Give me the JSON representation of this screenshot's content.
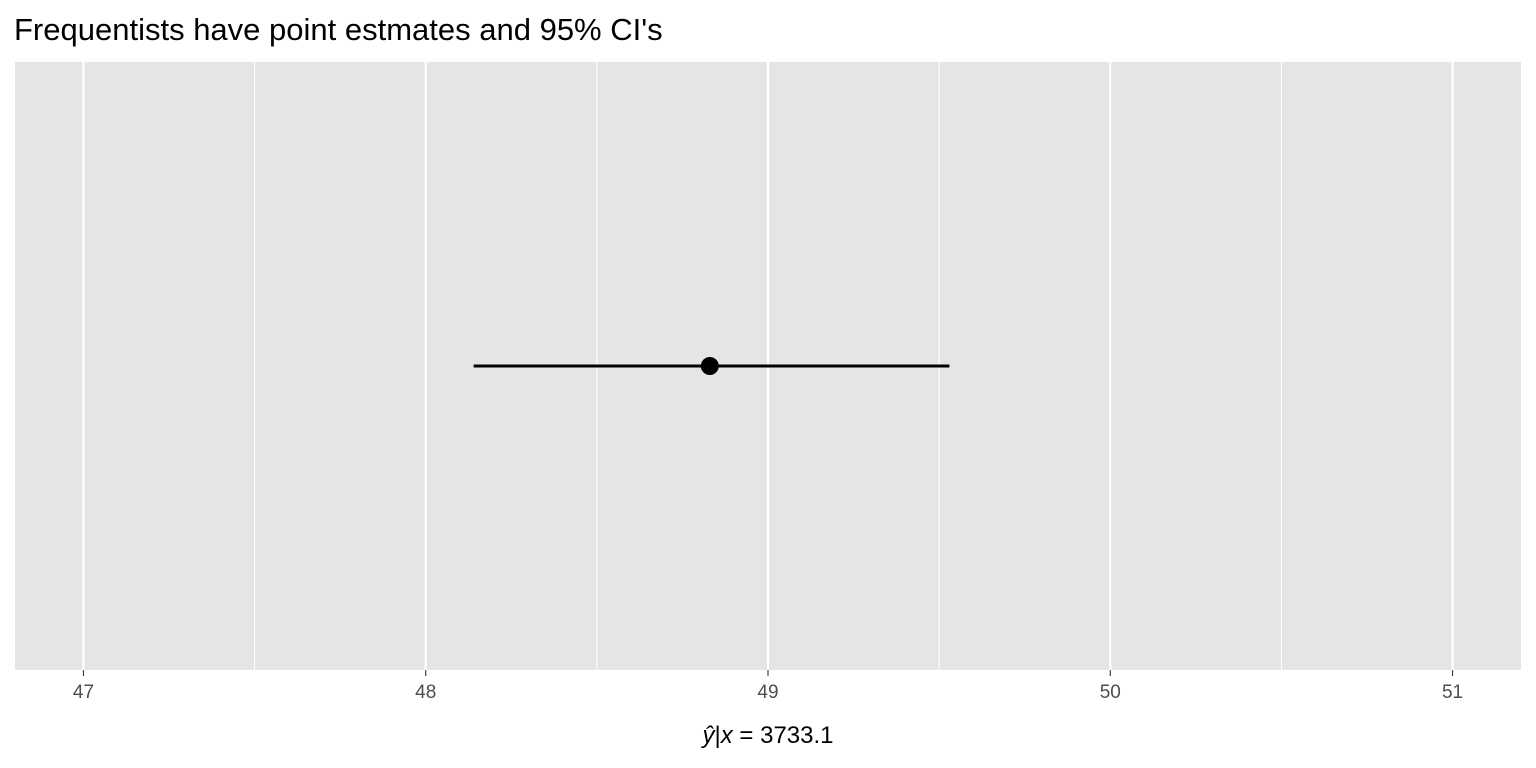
{
  "chart_data": {
    "type": "scatter",
    "title": "Frequentists have point estmates and 95% CI's",
    "xlabel": {
      "prefix_symbol": "ŷ",
      "separator": "|",
      "variable": "x",
      "relation": " = ",
      "value": "3733.1"
    },
    "ylabel": "",
    "xlim": [
      46.8,
      51.2
    ],
    "x_ticks": [
      47,
      48,
      49,
      50,
      51
    ],
    "x_tick_labels": [
      "47",
      "48",
      "49",
      "50",
      "51"
    ],
    "x_minor_ticks": [
      47.5,
      48.5,
      49.5,
      50.5
    ],
    "grid": true,
    "legend": "none",
    "points": [
      {
        "estimate": 48.83,
        "ci_lower": 48.14,
        "ci_upper": 49.53
      }
    ],
    "colors": {
      "panel_background": "#e5e5e5",
      "grid": "#ffffff",
      "point": "#000000",
      "errorbar": "#000000",
      "tick_label": "#4d4d4d"
    }
  }
}
